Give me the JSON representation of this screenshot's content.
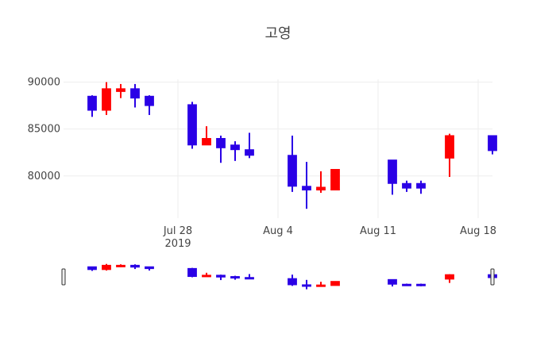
{
  "chart_data": {
    "type": "candlestick",
    "title": "고영",
    "x_tick_labels": [
      "Jul 28",
      "Aug 4",
      "Aug 11",
      "Aug 18"
    ],
    "x_tick_dates": [
      "2019-07-28",
      "2019-08-04",
      "2019-08-11",
      "2019-08-18"
    ],
    "x_year_label": "2019",
    "y_tick_labels": [
      "80000",
      "85000",
      "90000"
    ],
    "y_tick_values": [
      80000,
      85000,
      90000
    ],
    "ylim": [
      75500,
      90300
    ],
    "xlim": [
      "2019-07-20",
      "2019-08-19"
    ],
    "range_slider": true,
    "grid": true,
    "colors": {
      "increasing": "#ff0000",
      "decreasing": "#2a00e6"
    },
    "candles": [
      {
        "date": "2019-07-22",
        "open": 88500,
        "high": 88600,
        "low": 86300,
        "close": 87000
      },
      {
        "date": "2019-07-23",
        "open": 87000,
        "high": 90000,
        "low": 86500,
        "close": 89300
      },
      {
        "date": "2019-07-24",
        "open": 89000,
        "high": 89800,
        "low": 88300,
        "close": 89300
      },
      {
        "date": "2019-07-25",
        "open": 89300,
        "high": 89800,
        "low": 87300,
        "close": 88300
      },
      {
        "date": "2019-07-26",
        "open": 88500,
        "high": 88600,
        "low": 86500,
        "close": 87500
      },
      {
        "date": "2019-07-29",
        "open": 87600,
        "high": 87900,
        "low": 82900,
        "close": 83300
      },
      {
        "date": "2019-07-30",
        "open": 83300,
        "high": 85300,
        "low": 83300,
        "close": 84000
      },
      {
        "date": "2019-07-31",
        "open": 84000,
        "high": 84300,
        "low": 81400,
        "close": 83000
      },
      {
        "date": "2019-08-01",
        "open": 83300,
        "high": 83700,
        "low": 81600,
        "close": 82800
      },
      {
        "date": "2019-08-02",
        "open": 82800,
        "high": 84600,
        "low": 81900,
        "close": 82200
      },
      {
        "date": "2019-08-05",
        "open": 82200,
        "high": 84300,
        "low": 78300,
        "close": 78900
      },
      {
        "date": "2019-08-06",
        "open": 78900,
        "high": 81500,
        "low": 76500,
        "close": 78500
      },
      {
        "date": "2019-08-07",
        "open": 78500,
        "high": 80500,
        "low": 78200,
        "close": 78800
      },
      {
        "date": "2019-08-08",
        "open": 78500,
        "high": 80700,
        "low": 78500,
        "close": 80700
      },
      {
        "date": "2019-08-12",
        "open": 81700,
        "high": 81700,
        "low": 78000,
        "close": 79200
      },
      {
        "date": "2019-08-13",
        "open": 79200,
        "high": 79500,
        "low": 78300,
        "close": 78700
      },
      {
        "date": "2019-08-14",
        "open": 79200,
        "high": 79500,
        "low": 78100,
        "close": 78700
      },
      {
        "date": "2019-08-16",
        "open": 81900,
        "high": 84500,
        "low": 79900,
        "close": 84300
      },
      {
        "date": "2019-08-19",
        "open": 84300,
        "high": 84300,
        "low": 82300,
        "close": 82700
      }
    ]
  }
}
